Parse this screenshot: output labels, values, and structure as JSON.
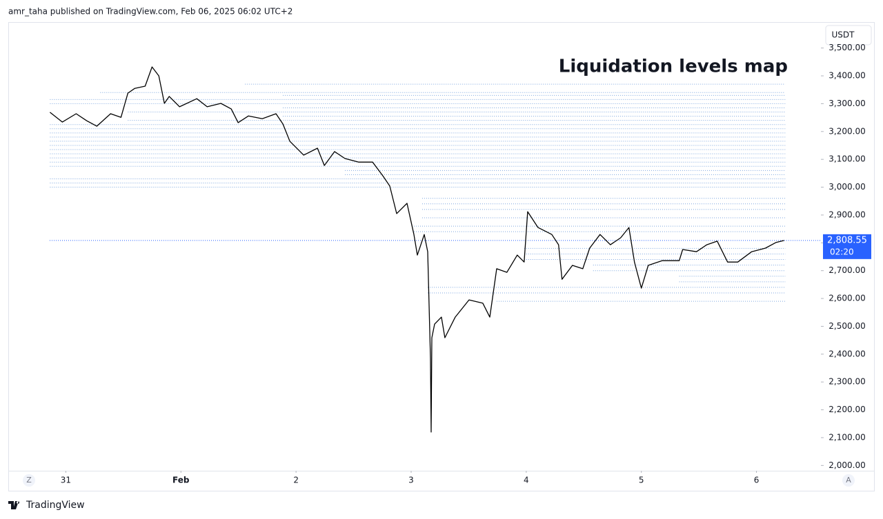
{
  "header": "amr_taha published on TradingView.com, Feb 06, 2025 06:02 UTC+2",
  "footer": "TradingView",
  "chart_data": {
    "type": "line",
    "title": "Liquidation levels map",
    "currency": "USDT",
    "left_button": "Z",
    "right_button": "A",
    "line_color": "#000000",
    "level_color": "#5b8fd6",
    "x": [
      -0.138,
      -0.03,
      0.09,
      0.18,
      0.269,
      0.389,
      0.479,
      0.539,
      0.599,
      0.689,
      0.749,
      0.808,
      0.856,
      0.898,
      0.988,
      1.138,
      1.228,
      1.347,
      1.437,
      1.497,
      1.587,
      1.707,
      1.826,
      1.886,
      1.946,
      2.066,
      2.186,
      2.246,
      2.335,
      2.425,
      2.545,
      2.665,
      2.754,
      2.814,
      2.874,
      2.964,
      3.024,
      3.054,
      3.114,
      3.144,
      3.168,
      3.174,
      3.18,
      3.204,
      3.263,
      3.293,
      3.383,
      3.503,
      3.623,
      3.683,
      3.743,
      3.832,
      3.922,
      3.982,
      4.012,
      4.102,
      4.222,
      4.281,
      4.311,
      4.401,
      4.491,
      4.551,
      4.641,
      4.731,
      4.82,
      4.892,
      4.94,
      5.0,
      5.06,
      5.18,
      5.329,
      5.359,
      5.479,
      5.569,
      5.659,
      5.749,
      5.838,
      5.958,
      6.078,
      6.168,
      6.24
    ],
    "values": [
      3269,
      3234,
      3264,
      3239,
      3219,
      3264,
      3251,
      3338,
      3355,
      3363,
      3432,
      3400,
      3301,
      3326,
      3289,
      3318,
      3289,
      3301,
      3281,
      3232,
      3256,
      3246,
      3264,
      3227,
      3165,
      3115,
      3140,
      3078,
      3128,
      3103,
      3090,
      3090,
      3041,
      3004,
      2905,
      2942,
      2830,
      2756,
      2830,
      2768,
      2385,
      2120,
      2459,
      2508,
      2533,
      2459,
      2533,
      2595,
      2583,
      2533,
      2707,
      2694,
      2756,
      2731,
      2912,
      2855,
      2830,
      2793,
      2669,
      2719,
      2707,
      2781,
      2830,
      2793,
      2818,
      2855,
      2731,
      2637,
      2719,
      2736,
      2736,
      2776,
      2768,
      2793,
      2806,
      2731,
      2731,
      2768,
      2781,
      2801,
      2808.55
    ],
    "last_price": 2808.55,
    "last_price_label": "2,808.55",
    "countdown": "02:20",
    "levels": [
      {
        "price": 3370,
        "start": 1.557
      },
      {
        "price": 3340,
        "start": 0.299
      },
      {
        "price": 3330,
        "start": 1.886
      },
      {
        "price": 3315,
        "start": -0.138
      },
      {
        "price": 3300,
        "start": -0.138
      },
      {
        "price": 3285,
        "start": 1.886
      },
      {
        "price": 3270,
        "start": 0.539
      },
      {
        "price": 3255,
        "start": 1.886
      },
      {
        "price": 3240,
        "start": 0.539
      },
      {
        "price": 3225,
        "start": -0.138
      },
      {
        "price": 3210,
        "start": -0.138
      },
      {
        "price": 3195,
        "start": -0.138
      },
      {
        "price": 3180,
        "start": -0.138
      },
      {
        "price": 3165,
        "start": -0.138
      },
      {
        "price": 3150,
        "start": -0.138
      },
      {
        "price": 3135,
        "start": -0.138
      },
      {
        "price": 3120,
        "start": -0.138
      },
      {
        "price": 3105,
        "start": -0.138
      },
      {
        "price": 3090,
        "start": -0.138
      },
      {
        "price": 3075,
        "start": -0.138
      },
      {
        "price": 3060,
        "start": 2.425
      },
      {
        "price": 3045,
        "start": 2.425
      },
      {
        "price": 3030,
        "start": -0.138
      },
      {
        "price": 3015,
        "start": -0.138
      },
      {
        "price": 3000,
        "start": -0.138
      },
      {
        "price": 2960,
        "start": 3.096
      },
      {
        "price": 2940,
        "start": 3.096
      },
      {
        "price": 2920,
        "start": 3.096
      },
      {
        "price": 2890,
        "start": 3.096
      },
      {
        "price": 2860,
        "start": 3.024
      },
      {
        "price": 2840,
        "start": 3.024
      },
      {
        "price": 2780,
        "start": 3.982
      },
      {
        "price": 2760,
        "start": 3.982
      },
      {
        "price": 2740,
        "start": 3.982
      },
      {
        "price": 2720,
        "start": 4.581
      },
      {
        "price": 2700,
        "start": 4.581
      },
      {
        "price": 2680,
        "start": 5.329
      },
      {
        "price": 2660,
        "start": 5.329
      },
      {
        "price": 2640,
        "start": 3.144
      },
      {
        "price": 2620,
        "start": 3.144
      },
      {
        "price": 2590,
        "start": 3.743
      }
    ],
    "level_end": 6.25,
    "xlim": [
      -0.5,
      6.56
    ],
    "ylim": [
      1981,
      3519
    ],
    "xticks": [
      {
        "value": 0,
        "label": "31"
      },
      {
        "value": 1,
        "label": "Feb"
      },
      {
        "value": 2,
        "label": "2"
      },
      {
        "value": 3,
        "label": "3"
      },
      {
        "value": 4,
        "label": "4"
      },
      {
        "value": 5,
        "label": "5"
      },
      {
        "value": 6,
        "label": "6"
      }
    ],
    "yticks": [
      {
        "value": 2000,
        "label": "2,000.00"
      },
      {
        "value": 2100,
        "label": "2,100.00"
      },
      {
        "value": 2200,
        "label": "2,200.00"
      },
      {
        "value": 2300,
        "label": "2,300.00"
      },
      {
        "value": 2400,
        "label": "2,400.00"
      },
      {
        "value": 2500,
        "label": "2,500.00"
      },
      {
        "value": 2600,
        "label": "2,600.00"
      },
      {
        "value": 2700,
        "label": "2,700.00"
      },
      {
        "value": 2800,
        "label": "2,800.00"
      },
      {
        "value": 2900,
        "label": "2,900.00"
      },
      {
        "value": 3000,
        "label": "3,000.00"
      },
      {
        "value": 3100,
        "label": "3,100.00"
      },
      {
        "value": 3200,
        "label": "3,200.00"
      },
      {
        "value": 3300,
        "label": "3,300.00"
      },
      {
        "value": 3400,
        "label": "3,400.00"
      },
      {
        "value": 3500,
        "label": "3,500.00"
      }
    ]
  }
}
